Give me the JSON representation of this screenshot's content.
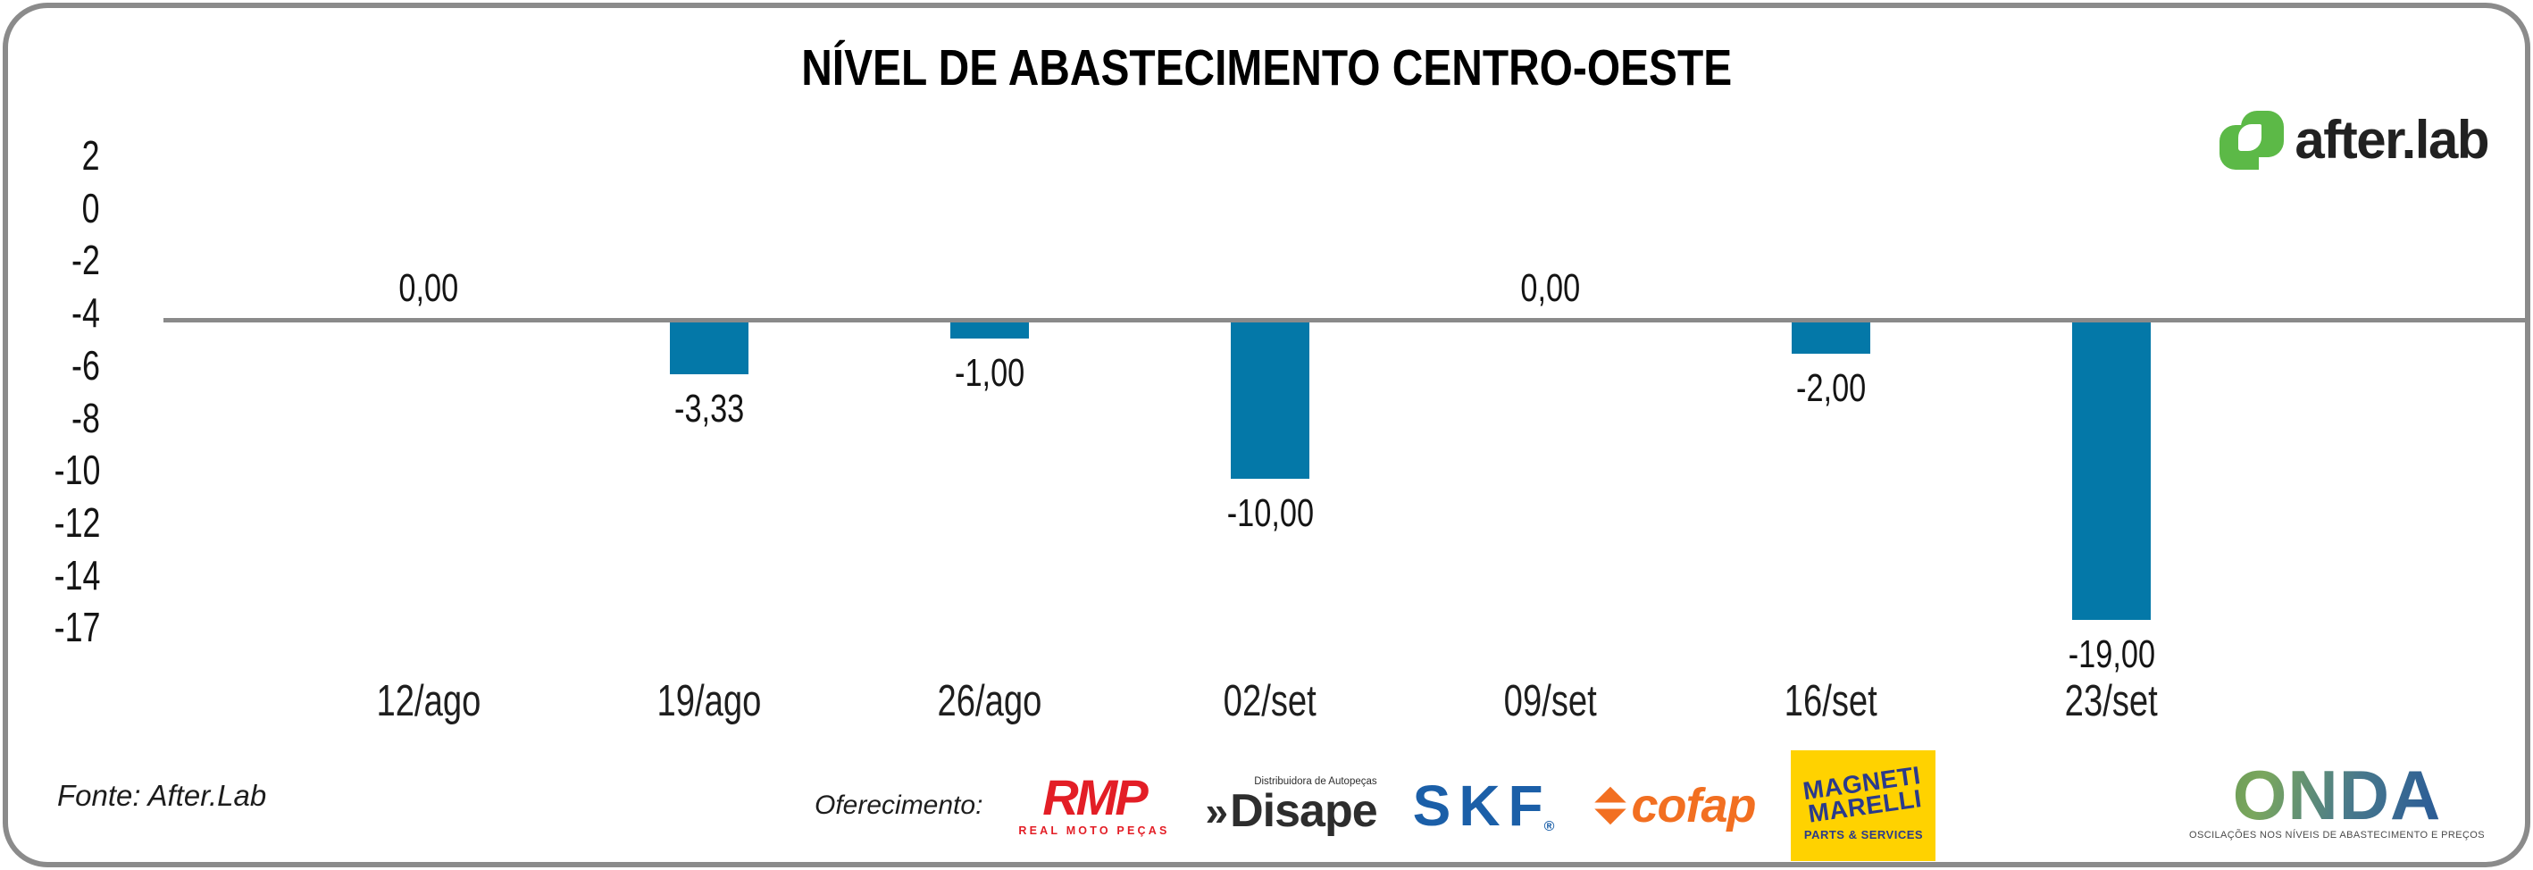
{
  "branding": {
    "afterlab": {
      "text": "after.lab",
      "icon_green": "#5cb947"
    },
    "onda": {
      "text": "ONDA",
      "tagline": "OSCILAÇÕES NOS NÍVEIS DE ABASTECIMENTO E PREÇOS"
    }
  },
  "source": {
    "label": "Fonte: After.Lab"
  },
  "sponsors": {
    "label": "Oferecimento:",
    "items": [
      {
        "name": "RMP",
        "subtext": "REAL MOTO PEÇAS",
        "color": "#e31e26"
      },
      {
        "name": "Disape",
        "prefix": "»",
        "subtext": "Distribuidora de Autopeças",
        "color": "#2d2d2d"
      },
      {
        "name": "SKF",
        "reg": "®",
        "color": "#1b5fa8"
      },
      {
        "name": "cofap",
        "color": "#f26f21"
      },
      {
        "name": "MAGNETI MARELLI",
        "line1": "MAGNETI",
        "line2": "MARELLI",
        "subtext": "PARTS & SERVICES",
        "bg": "#ffd200",
        "color": "#2a3a8c"
      }
    ]
  },
  "chart_data": {
    "type": "bar",
    "title": "NÍVEL DE ABASTECIMENTO CENTRO-OESTE",
    "categories": [
      "12/ago",
      "19/ago",
      "26/ago",
      "02/set",
      "09/set",
      "16/set",
      "23/set"
    ],
    "values": [
      0,
      -3.33,
      -1,
      -10,
      0,
      -2,
      -19
    ],
    "labels": [
      "0,00",
      "-3,33",
      "-1,00",
      "-10,00",
      "0,00",
      "-2,00",
      "-19,00"
    ],
    "y_ticks": [
      2,
      0,
      -2,
      -4,
      -6,
      -8,
      -10,
      -12,
      -14,
      -17
    ],
    "xlabel": "",
    "ylabel": "",
    "bar_color": "#0478a8",
    "axis_color": "#8a8a8a",
    "grid": false,
    "legend": false
  }
}
